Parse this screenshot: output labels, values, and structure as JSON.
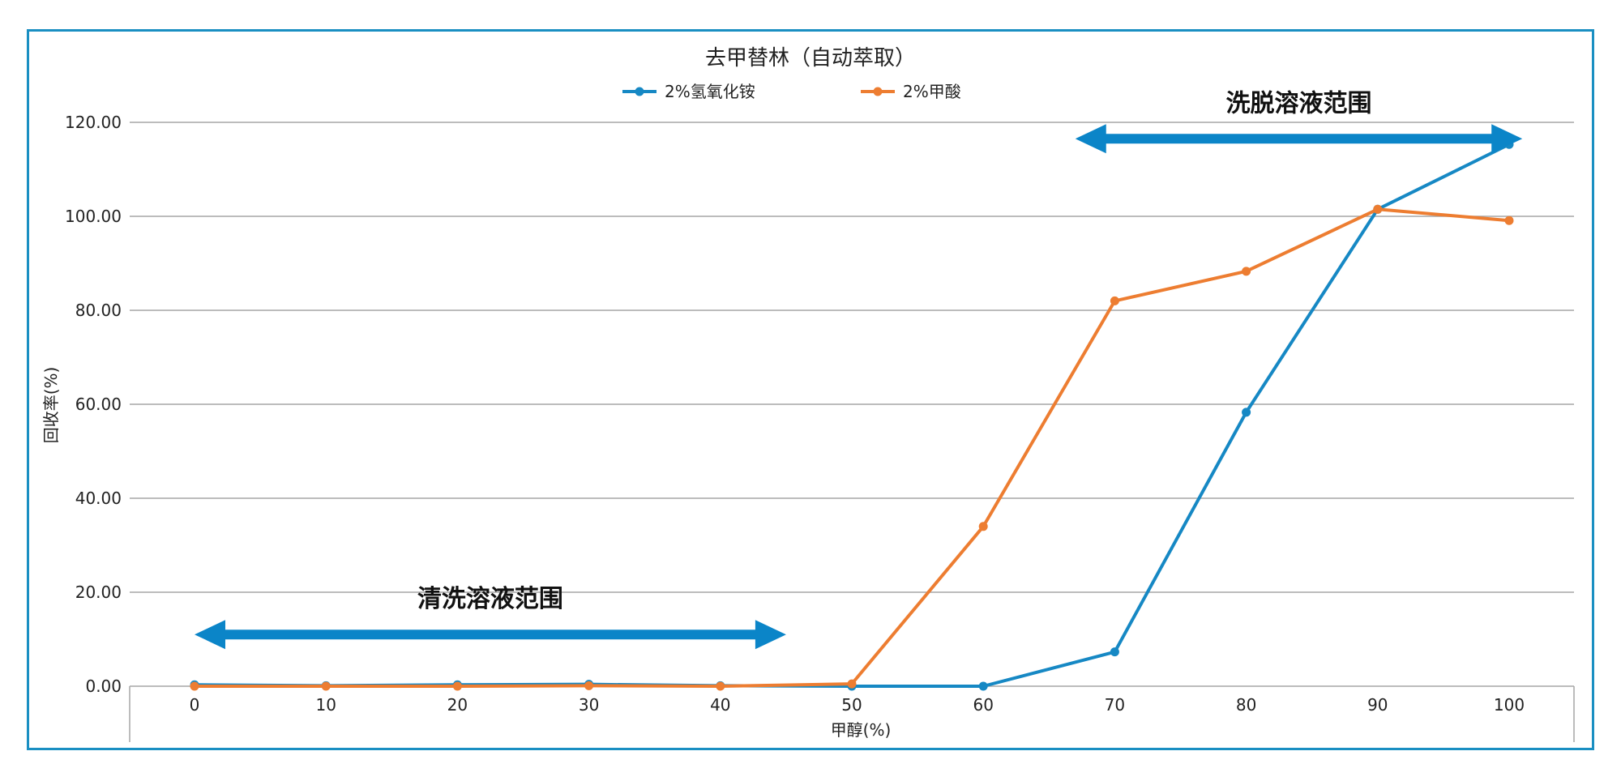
{
  "chart_data": {
    "type": "line",
    "title": "去甲替林（自动萃取）",
    "xlabel": "甲醇(%)",
    "ylabel": "回收率(%)",
    "x": [
      0,
      10,
      20,
      30,
      40,
      50,
      60,
      70,
      80,
      90,
      100
    ],
    "x_tick_labels": [
      "0",
      "10",
      "20",
      "30",
      "40",
      "50",
      "60",
      "70",
      "80",
      "90",
      "100"
    ],
    "ylim": [
      0,
      120
    ],
    "y_ticks": [
      0,
      20,
      40,
      60,
      80,
      100,
      120
    ],
    "y_tick_labels": [
      "0.00",
      "20.00",
      "40.00",
      "60.00",
      "80.00",
      "100.00",
      "120.00"
    ],
    "grid": "horizontal",
    "legend_position": "top-center",
    "series": [
      {
        "name": "2%氢氧化铵",
        "color": "#1688c4",
        "values": [
          0.3,
          0.1,
          0.3,
          0.4,
          0.1,
          0.0,
          0.0,
          7.3,
          58.3,
          101.5,
          115.3
        ]
      },
      {
        "name": "2%甲酸",
        "color": "#ed7d31",
        "values": [
          0.0,
          0.0,
          0.0,
          0.1,
          0.0,
          0.5,
          34.0,
          82.0,
          88.3,
          101.5,
          99.1
        ]
      }
    ],
    "annotations": [
      {
        "label": "清洗溶液范围",
        "x_from": 0,
        "x_to": 45,
        "y": 11
      },
      {
        "label": "洗脱溶液范围",
        "x_from": 67,
        "x_to": 101,
        "y": 116.5
      }
    ],
    "annotation_color": "#0b85c8"
  }
}
